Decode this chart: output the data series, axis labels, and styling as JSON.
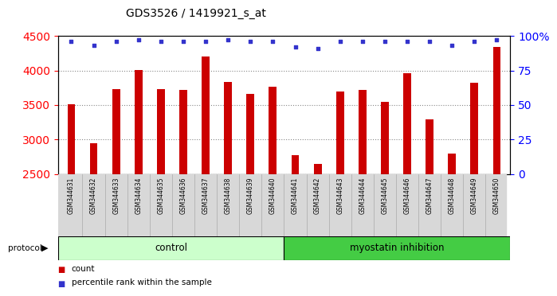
{
  "title": "GDS3526 / 1419921_s_at",
  "samples": [
    "GSM344631",
    "GSM344632",
    "GSM344633",
    "GSM344634",
    "GSM344635",
    "GSM344636",
    "GSM344637",
    "GSM344638",
    "GSM344639",
    "GSM344640",
    "GSM344641",
    "GSM344642",
    "GSM344643",
    "GSM344644",
    "GSM344645",
    "GSM344646",
    "GSM344647",
    "GSM344648",
    "GSM344649",
    "GSM344650"
  ],
  "counts": [
    3510,
    2940,
    3730,
    4010,
    3730,
    3720,
    4200,
    3830,
    3660,
    3760,
    2770,
    2650,
    3700,
    3720,
    3540,
    3960,
    3290,
    2790,
    3820,
    4340
  ],
  "percentile_ranks": [
    96,
    93,
    96,
    97,
    96,
    96,
    96,
    97,
    96,
    96,
    92,
    91,
    96,
    96,
    96,
    96,
    96,
    93,
    96,
    97
  ],
  "control_count": 10,
  "myostatin_count": 10,
  "bar_color": "#cc0000",
  "dot_color": "#3333cc",
  "ylim_left": [
    2500,
    4500
  ],
  "ylim_right": [
    0,
    100
  ],
  "yticks_left": [
    2500,
    3000,
    3500,
    4000,
    4500
  ],
  "yticks_right": [
    0,
    25,
    50,
    75,
    100
  ],
  "bg_plot": "#ffffff",
  "bg_label": "#d8d8d8",
  "bg_label_control": "#ccffcc",
  "bg_label_myostatin": "#44cc44",
  "control_label": "control",
  "myostatin_label": "myostatin inhibition",
  "protocol_label": "protocol",
  "legend_count_label": "count",
  "legend_pct_label": "percentile rank within the sample"
}
